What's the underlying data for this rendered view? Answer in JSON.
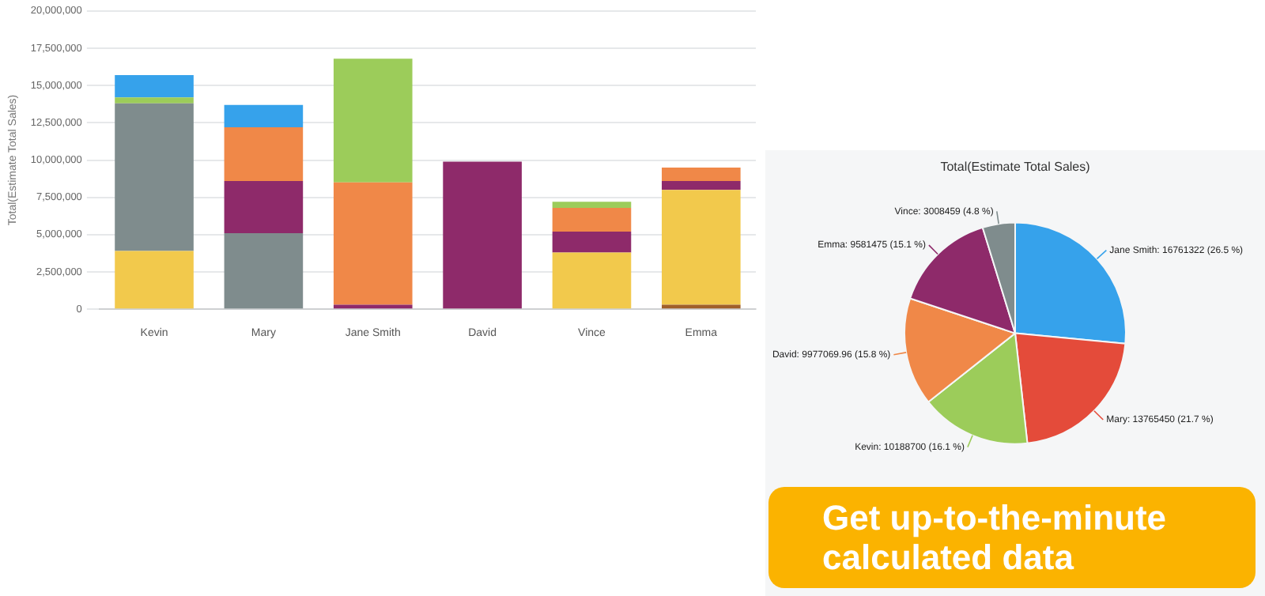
{
  "chart_data": [
    {
      "type": "bar",
      "stacked": true,
      "ylabel": "Total(Estimate Total Sales)",
      "categories": [
        "Kevin",
        "Mary",
        "Jane Smith",
        "David",
        "Vince",
        "Emma"
      ],
      "ylim": [
        0,
        20000000
      ],
      "yticks": [
        {
          "value": 0,
          "label": "0"
        },
        {
          "value": 2500000,
          "label": "2,500,000"
        },
        {
          "value": 5000000,
          "label": "5,000,000"
        },
        {
          "value": 7500000,
          "label": "7,500,000"
        },
        {
          "value": 10000000,
          "label": "10,000,000"
        },
        {
          "value": 12500000,
          "label": "12,500,000"
        },
        {
          "value": 15000000,
          "label": "15,000,000"
        },
        {
          "value": 17500000,
          "label": "17,500,000"
        },
        {
          "value": 20000000,
          "label": "20,000,000"
        }
      ],
      "grid": "y",
      "legend": false,
      "series": [
        {
          "color": "#a0602a",
          "values": [
            null,
            null,
            null,
            null,
            null,
            300000
          ]
        },
        {
          "color": "#f2c94c",
          "values": [
            3900000,
            null,
            null,
            null,
            3800000,
            7700000
          ]
        },
        {
          "color": "#7f8c8d",
          "values": [
            9900000,
            5100000,
            null,
            null,
            null,
            null
          ]
        },
        {
          "color": "#8e2a6a",
          "values": [
            null,
            3500000,
            300000,
            9900000,
            1400000,
            600000
          ]
        },
        {
          "color": "#f08848",
          "values": [
            null,
            3600000,
            8200000,
            null,
            1600000,
            900000
          ]
        },
        {
          "color": "#9ccc5a",
          "values": [
            400000,
            null,
            8300000,
            null,
            400000,
            null
          ]
        },
        {
          "color": "#36a2eb",
          "values": [
            1500000,
            1500000,
            null,
            null,
            null,
            null
          ]
        }
      ]
    },
    {
      "type": "pie",
      "title": "Total(Estimate Total Sales)",
      "categories": [
        "Jane Smith",
        "Mary",
        "Kevin",
        "David",
        "Emma",
        "Vince"
      ],
      "values": [
        16761322,
        13765450,
        10188700,
        9977069.96,
        9581475,
        3008459
      ],
      "colors": [
        "#36a2eb",
        "#e44b3a",
        "#9ccc5a",
        "#f08848",
        "#8e2a6a",
        "#7f8c8d"
      ],
      "value_labels": [
        "16761322 (26.5 %)",
        "13765450 (21.7 %)",
        "10188700 (16.1 %)",
        "9977069.96 (15.8 %)",
        "9581475 (15.1 %)",
        "3008459 (4.8 %)"
      ],
      "legend": false,
      "annotations": [
        "Get up-to-the-minute calculated data"
      ]
    }
  ]
}
